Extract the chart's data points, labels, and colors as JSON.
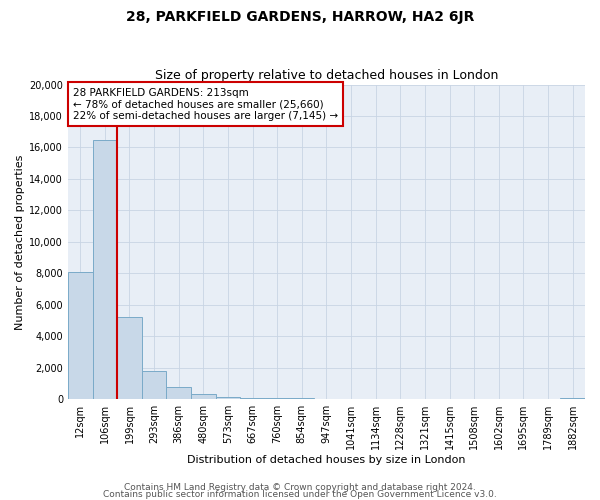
{
  "title": "28, PARKFIELD GARDENS, HARROW, HA2 6JR",
  "subtitle": "Size of property relative to detached houses in London",
  "xlabel": "Distribution of detached houses by size in London",
  "ylabel": "Number of detached properties",
  "bar_labels": [
    "12sqm",
    "106sqm",
    "199sqm",
    "293sqm",
    "386sqm",
    "480sqm",
    "573sqm",
    "667sqm",
    "760sqm",
    "854sqm",
    "947sqm",
    "1041sqm",
    "1134sqm",
    "1228sqm",
    "1321sqm",
    "1415sqm",
    "1508sqm",
    "1602sqm",
    "1695sqm",
    "1789sqm",
    "1882sqm"
  ],
  "bar_values": [
    8050,
    16500,
    5200,
    1800,
    750,
    300,
    150,
    100,
    80,
    50,
    0,
    0,
    0,
    0,
    0,
    0,
    0,
    0,
    0,
    0,
    50
  ],
  "bar_color": "#c8d8e8",
  "bar_edge_color": "#7aaac8",
  "vline_color": "#cc0000",
  "annotation_line1": "28 PARKFIELD GARDENS: 213sqm",
  "annotation_line2": "← 78% of detached houses are smaller (25,660)",
  "annotation_line3": "22% of semi-detached houses are larger (7,145) →",
  "annotation_box_color": "#cc0000",
  "plot_bg_color": "#e8eef6",
  "ylim": [
    0,
    20000
  ],
  "yticks": [
    0,
    2000,
    4000,
    6000,
    8000,
    10000,
    12000,
    14000,
    16000,
    18000,
    20000
  ],
  "background_color": "#ffffff",
  "grid_color": "#c8d4e4",
  "footer_line1": "Contains HM Land Registry data © Crown copyright and database right 2024.",
  "footer_line2": "Contains public sector information licensed under the Open Government Licence v3.0.",
  "title_fontsize": 10,
  "subtitle_fontsize": 9,
  "axis_label_fontsize": 8,
  "tick_fontsize": 7,
  "annotation_fontsize": 7.5,
  "footer_fontsize": 6.5
}
